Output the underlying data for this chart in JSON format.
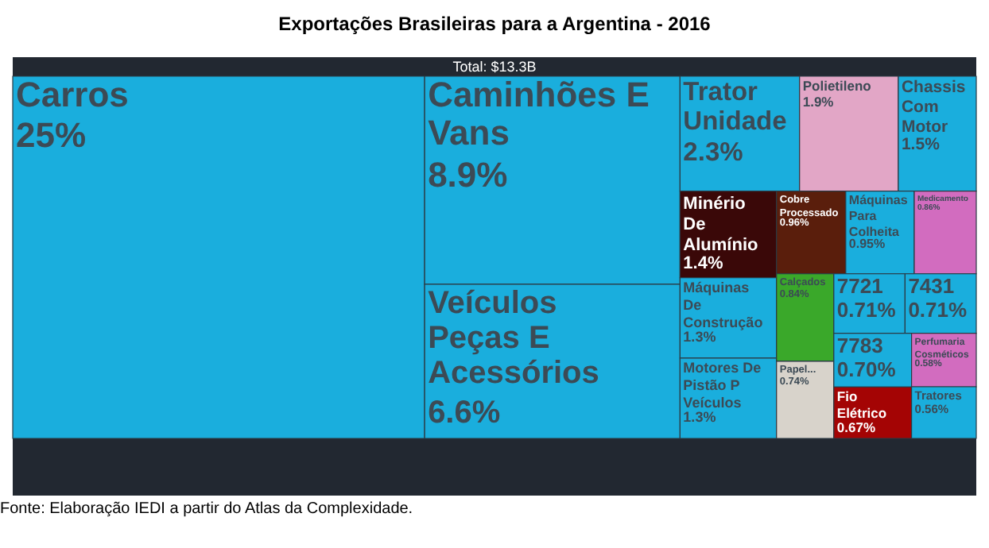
{
  "chart_data": {
    "type": "other",
    "title": "Exportações Brasileiras para a Argentina - 2016",
    "annotations": [
      "Total: $13.3B",
      "Fonte: Elaboração IEDI a partir do Atlas da Complexidade."
    ],
    "categories": [
      "Carros",
      "Caminhões E Vans",
      "Veículos Peças E Acessórios",
      "Trator Unidade",
      "Polietileno",
      "Chassis Com Motor",
      "Minério De Alumínio",
      "Máquinas De Construção",
      "Motores De Pistão P Veículos",
      "Cobre Processado",
      "Máquinas Para Colheita",
      "Medicamento",
      "Calçados",
      "Papel...",
      "7721",
      "7431",
      "7783",
      "Fio Elétrico",
      "Perfumaria Cosméticos",
      "Tratores"
    ],
    "values": [
      25,
      8.9,
      6.6,
      2.3,
      1.9,
      1.5,
      1.4,
      1.3,
      1.3,
      0.96,
      0.95,
      0.86,
      0.84,
      0.74,
      0.71,
      0.71,
      0.7,
      0.67,
      0.58,
      0.56
    ],
    "value_labels": [
      "25%",
      "8.9%",
      "6.6%",
      "2.3%",
      "1.9%",
      "1.5%",
      "1.4%",
      "1.3%",
      "1.3%",
      "0.96%",
      "0.95%",
      "0.86%",
      "0.84%",
      "0.74%",
      "0.71%",
      "0.71%",
      "0.70%",
      "0.67%",
      "0.58%",
      "0.56%"
    ],
    "colors": [
      "#1aaedd",
      "#1aaedd",
      "#1aaedd",
      "#1aaedd",
      "#e2a6c6",
      "#1aaedd",
      "#3a0808",
      "#1aaedd",
      "#1aaedd",
      "#5a1e0c",
      "#1aaedd",
      "#d26cbf",
      "#3aa82a",
      "#d8d3cb",
      "#1aaedd",
      "#1aaedd",
      "#1aaedd",
      "#a40404",
      "#d26cbf",
      "#1aaedd"
    ]
  }
}
